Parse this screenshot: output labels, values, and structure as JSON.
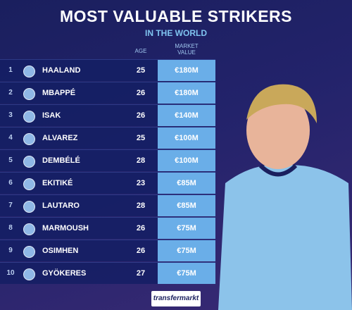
{
  "header": {
    "title": "MOST VALUABLE STRIKERS",
    "subtitle": "IN THE WORLD"
  },
  "table": {
    "columns": [
      "AGE",
      "MARKET VALUE"
    ],
    "rows": [
      [
        1,
        "HAALAND",
        25,
        "€180M"
      ],
      [
        2,
        "MBAPPÉ",
        26,
        "€180M"
      ],
      [
        3,
        "ISAK",
        26,
        "€140M"
      ],
      [
        4,
        "ALVAREZ",
        25,
        "€100M"
      ],
      [
        5,
        "DEMBÉLÉ",
        28,
        "€100M"
      ],
      [
        6,
        "EKITIKÉ",
        23,
        "€85M"
      ],
      [
        7,
        "LAUTARO",
        28,
        "€85M"
      ],
      [
        8,
        "MARMOUSH",
        26,
        "€75M"
      ],
      [
        9,
        "OSIMHEN",
        26,
        "€75M"
      ],
      [
        10,
        "GYÖKERES",
        27,
        "€75M"
      ]
    ]
  },
  "footer": {
    "logo": "transfermarkt"
  }
}
